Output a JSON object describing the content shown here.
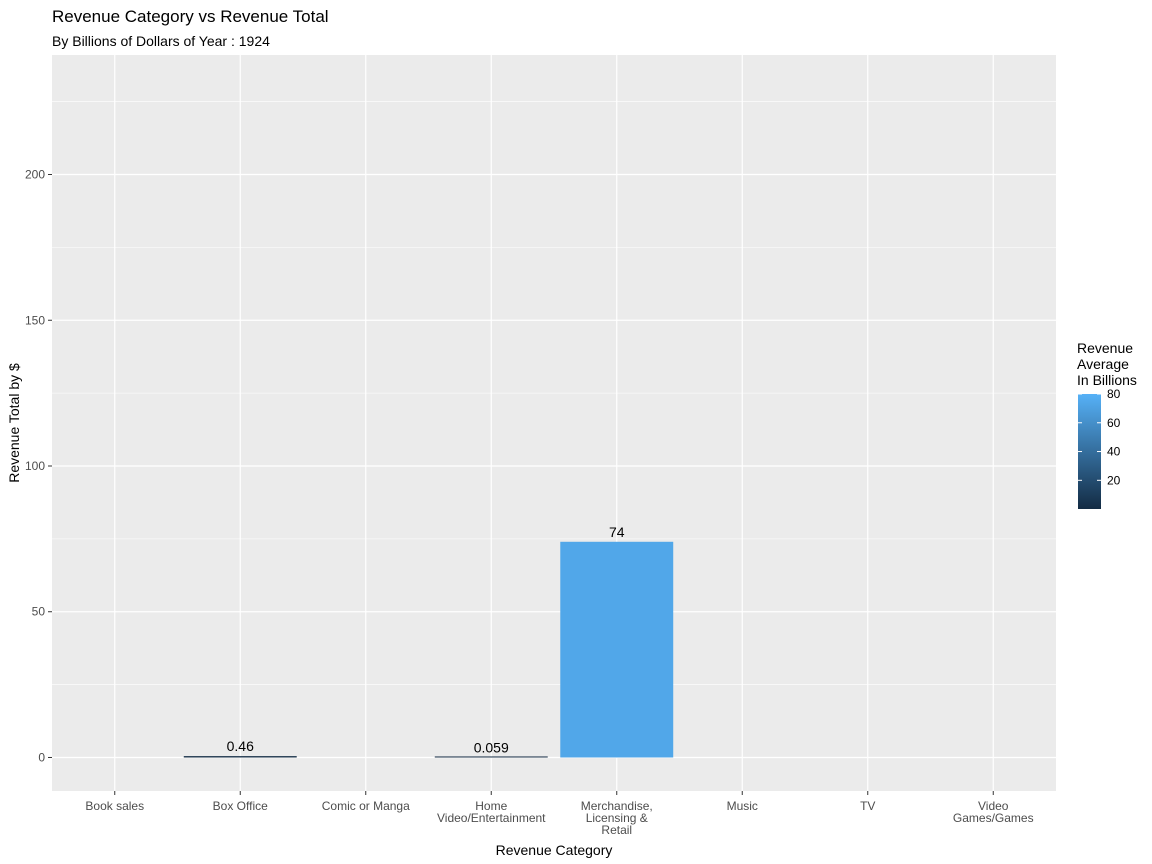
{
  "chart_data": {
    "type": "bar",
    "title": "Revenue Category vs Revenue Total",
    "subtitle": "By Billions of Dollars of Year : 1924",
    "xlabel": "Revenue Category",
    "ylabel": "Revenue Total by $",
    "categories": [
      "Book sales",
      "Box Office",
      "Comic or Manga",
      "Home\nVideo/Entertainment",
      "Merchandise,\nLicensing &\nRetail",
      "Music",
      "TV",
      "Video\nGames/Games"
    ],
    "values": [
      null,
      0.46,
      null,
      0.059,
      74,
      null,
      null,
      null
    ],
    "data_labels": [
      null,
      "0.46",
      null,
      "0.059",
      "74",
      null,
      null,
      null
    ],
    "ylim": [
      -11.5,
      241
    ],
    "yticks": [
      0,
      50,
      100,
      150,
      200
    ],
    "ytick_labels": [
      "0",
      "50",
      "100",
      "150",
      "200"
    ],
    "grid": true,
    "panel_background": "#ebebeb",
    "legend": {
      "title": "Revenue\nAverage\nIn Billions",
      "position": "right",
      "min": 0.059,
      "max": 80,
      "ticks": [
        20,
        40,
        60,
        80
      ],
      "tick_labels": [
        "20",
        "40",
        "60",
        "80"
      ],
      "color_low": "#132b43",
      "color_high": "#56b1f7"
    }
  }
}
